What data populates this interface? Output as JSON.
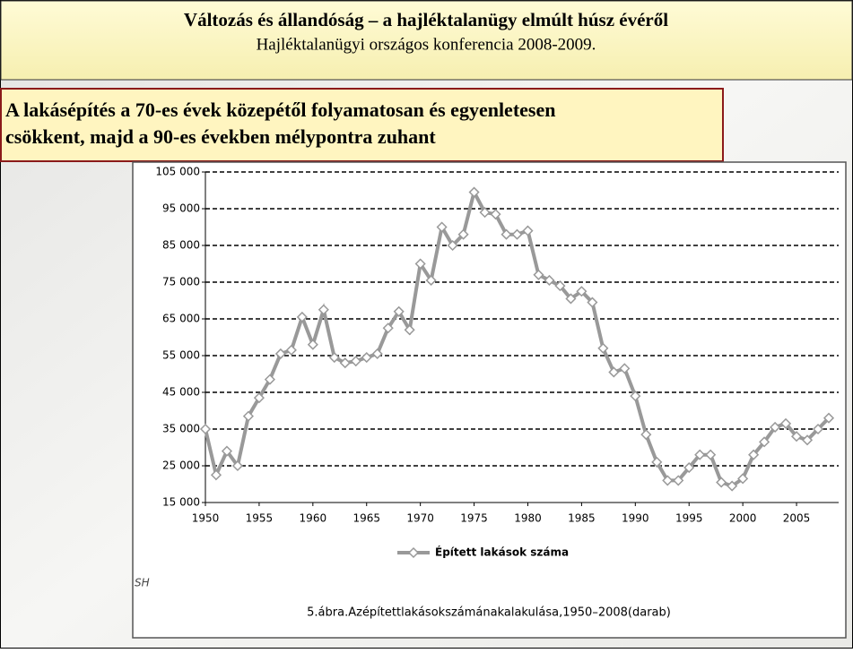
{
  "slide": {
    "title": "Változás és állandóság – a hajléktalanügy elmúlt húsz évéről",
    "subtitle": "Hajléktalanügyi országos konferencia 2008-2009.",
    "heading_lines": [
      "A lakásépítés a 70-es évek közepétől folyamatosan és egyenletesen",
      "csökkent, majd a 90-es években mélypontra zuhant"
    ]
  },
  "chart_data": {
    "type": "line",
    "x": [
      1950,
      1951,
      1952,
      1953,
      1954,
      1955,
      1956,
      1957,
      1958,
      1959,
      1960,
      1961,
      1962,
      1963,
      1964,
      1965,
      1966,
      1967,
      1968,
      1969,
      1970,
      1971,
      1972,
      1973,
      1974,
      1975,
      1976,
      1977,
      1978,
      1979,
      1980,
      1981,
      1982,
      1983,
      1984,
      1985,
      1986,
      1987,
      1988,
      1989,
      1990,
      1991,
      1992,
      1993,
      1994,
      1995,
      1996,
      1997,
      1998,
      1999,
      2000,
      2001,
      2002,
      2003,
      2004,
      2005,
      2006,
      2007,
      2008
    ],
    "series": [
      {
        "name": "Épített lakások száma",
        "color": "#999999",
        "values": [
          35000,
          22500,
          29000,
          25000,
          38500,
          43500,
          48500,
          55500,
          56500,
          65500,
          58000,
          67500,
          54500,
          53000,
          53500,
          54500,
          55500,
          62500,
          67000,
          62000,
          80000,
          75500,
          90000,
          85000,
          88000,
          99500,
          94000,
          93500,
          88000,
          88000,
          89000,
          77000,
          75500,
          74000,
          70500,
          72500,
          69500,
          57000,
          50500,
          51500,
          44000,
          33500,
          26000,
          21000,
          21000,
          24500,
          28000,
          28000,
          20500,
          19500,
          21500,
          28000,
          31500,
          35500,
          36500,
          33000,
          32000,
          35000,
          38000
        ]
      }
    ],
    "xlim": [
      1950,
      2008
    ],
    "xticks": [
      1950,
      1955,
      1960,
      1965,
      1970,
      1975,
      1980,
      1985,
      1990,
      1995,
      2000,
      2005
    ],
    "ylim": [
      15000,
      105000
    ],
    "yticks": [
      {
        "value": 15000,
        "label": "15 000"
      },
      {
        "value": 25000,
        "label": "25 000"
      },
      {
        "value": 35000,
        "label": "35 000"
      },
      {
        "value": 45000,
        "label": "45 000"
      },
      {
        "value": 55000,
        "label": "55 000"
      },
      {
        "value": 65000,
        "label": "65 000"
      },
      {
        "value": 75000,
        "label": "75 000"
      },
      {
        "value": 85000,
        "label": "85 000"
      },
      {
        "value": 95000,
        "label": "95 000"
      },
      {
        "value": 105000,
        "label": "105 000"
      }
    ],
    "grid": true,
    "legend": "bottom",
    "source_fragment": "SH",
    "caption": "5.ábra.Azépítettlakásokszámánakalakulása,1950–2008(darab)"
  }
}
